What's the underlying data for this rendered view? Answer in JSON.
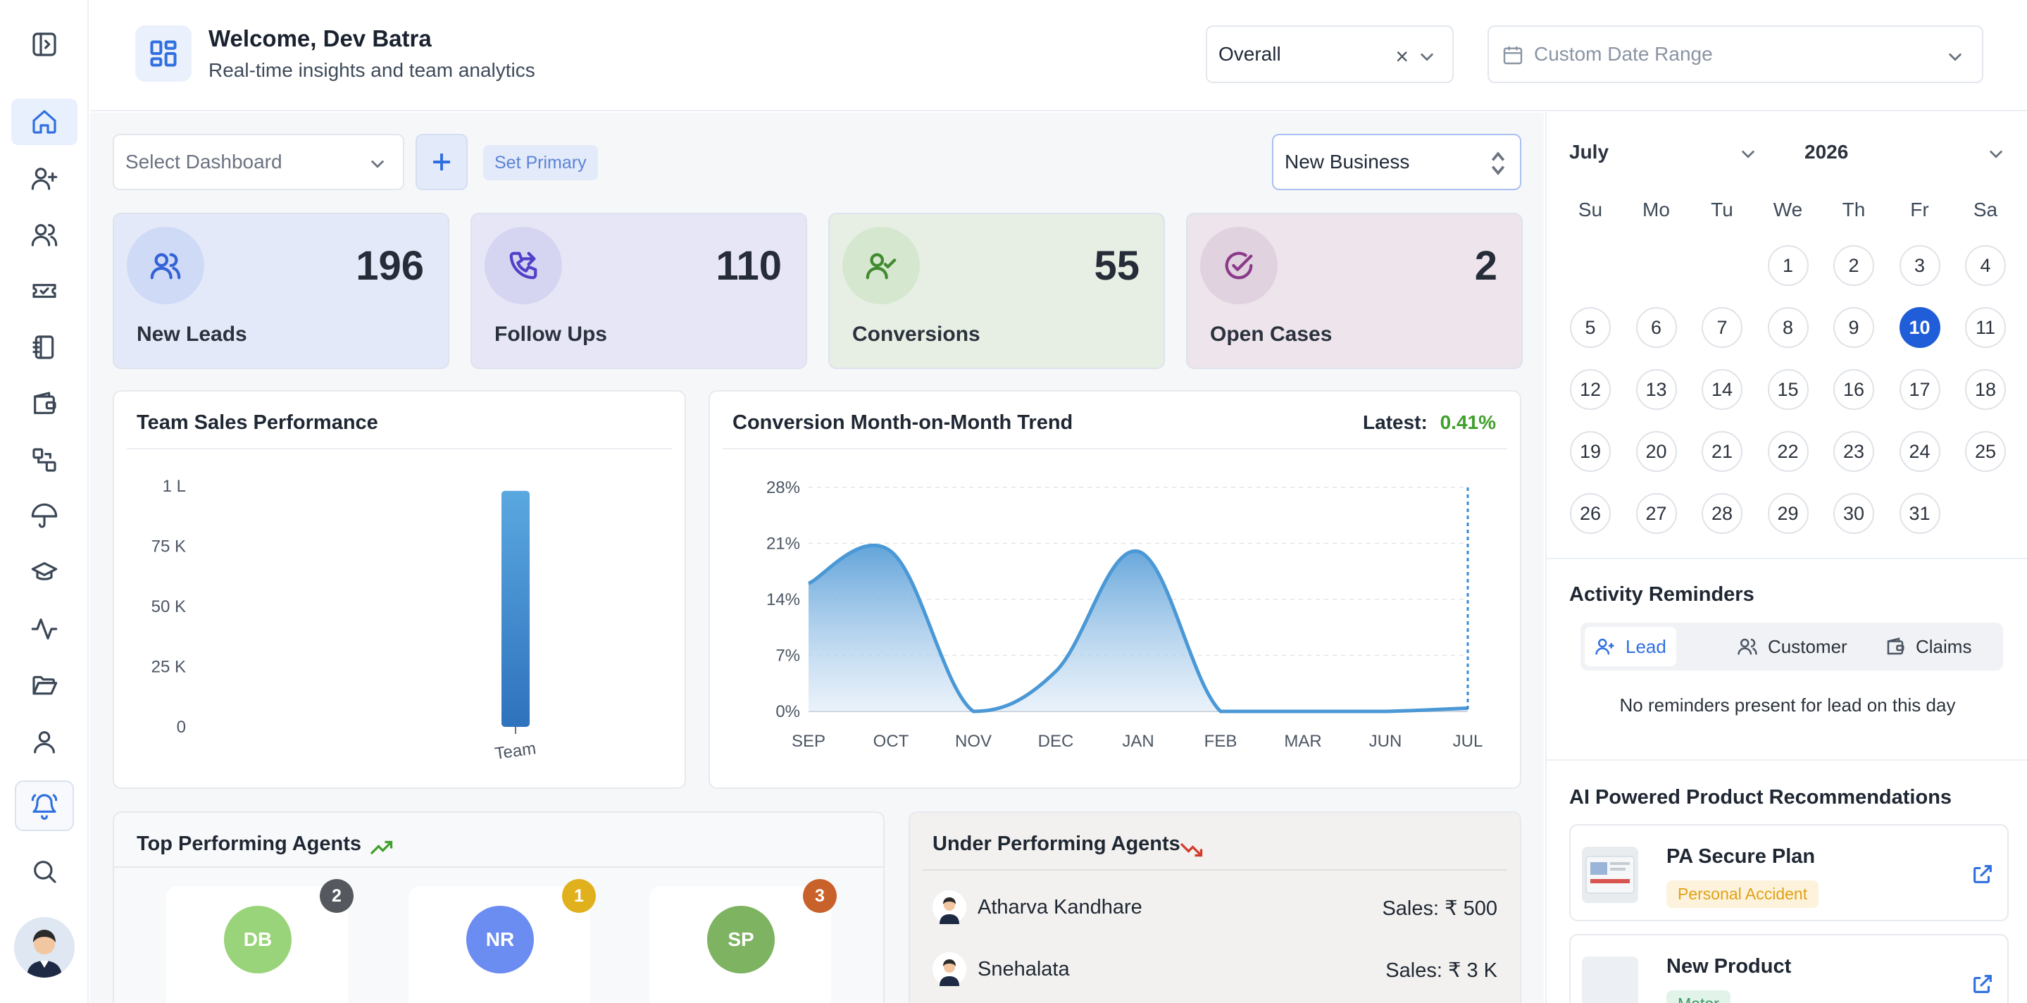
{
  "header": {
    "welcome": "Welcome, Dev Batra",
    "subtitle": "Real-time insights and team analytics",
    "overall_select": "Overall",
    "date_range_placeholder": "Custom Date Range"
  },
  "toolbar": {
    "select_dashboard_placeholder": "Select Dashboard",
    "set_primary_label": "Set Primary",
    "business_select": "New Business"
  },
  "stats": [
    {
      "label": "New Leads",
      "value": "196",
      "icon": "users-icon",
      "color": "#e4e9f9"
    },
    {
      "label": "Follow Ups",
      "value": "110",
      "icon": "phone-forward-icon",
      "color": "#e6e6f6"
    },
    {
      "label": "Conversions",
      "value": "55",
      "icon": "user-check-icon",
      "color": "#e7efe4"
    },
    {
      "label": "Open Cases",
      "value": "2",
      "icon": "check-circle-icon",
      "color": "#ede4ec"
    }
  ],
  "team_sales": {
    "title": "Team Sales Performance",
    "chart_data": {
      "type": "bar",
      "categories": [
        "Team"
      ],
      "values": [
        98000
      ],
      "yticks": [
        "0",
        "25 K",
        "50 K",
        "75 K",
        "1 L"
      ],
      "ylim": [
        0,
        100000
      ]
    }
  },
  "conversion_trend": {
    "title": "Conversion Month-on-Month Trend",
    "latest_label": "Latest:",
    "latest_value": "0.41%",
    "chart_data": {
      "type": "area",
      "x": [
        "SEP",
        "OCT",
        "NOV",
        "DEC",
        "JAN",
        "FEB",
        "MAR",
        "JUN",
        "JUL"
      ],
      "values": [
        16,
        20,
        0,
        5,
        20,
        0,
        0,
        0,
        0.41
      ],
      "yticks": [
        "0%",
        "7%",
        "14%",
        "21%",
        "28%"
      ],
      "ylim": [
        0,
        28
      ]
    }
  },
  "top_agents": {
    "title": "Top Performing Agents",
    "agents": [
      {
        "initials": "DB",
        "rank": "2",
        "color": "#9ad47a",
        "rank_color": "#55595f"
      },
      {
        "initials": "NR",
        "rank": "1",
        "color": "#6b8cf0",
        "rank_color": "#e0b11c"
      },
      {
        "initials": "SP",
        "rank": "3",
        "color": "#7db361",
        "rank_color": "#c9622a"
      }
    ]
  },
  "under_agents": {
    "title": "Under Performing Agents",
    "agents": [
      {
        "name": "Atharva Kandhare",
        "sales": "Sales: ₹ 500"
      },
      {
        "name": "Snehalata",
        "sales": "Sales: ₹ 3 K"
      }
    ]
  },
  "calendar": {
    "month": "July",
    "year": "2026",
    "weekdays": [
      "Su",
      "Mo",
      "Tu",
      "We",
      "Th",
      "Fr",
      "Sa"
    ],
    "selected_day": 10,
    "first_weekday": 3,
    "days_in_month": 31
  },
  "reminders": {
    "title": "Activity Reminders",
    "tabs": [
      "Lead",
      "Customer",
      "Claims"
    ],
    "empty_text": "No reminders present for lead on this day"
  },
  "recommendations": {
    "title": "AI Powered Product Recommendations",
    "products": [
      {
        "name": "PA Secure Plan",
        "tag": "Personal Accident",
        "tag_bg": "#fdf3dc",
        "tag_color": "#e0a116"
      },
      {
        "name": "New Product",
        "tag": "Motor",
        "tag_bg": "#e2f3ea",
        "tag_color": "#3a9a66"
      }
    ]
  }
}
